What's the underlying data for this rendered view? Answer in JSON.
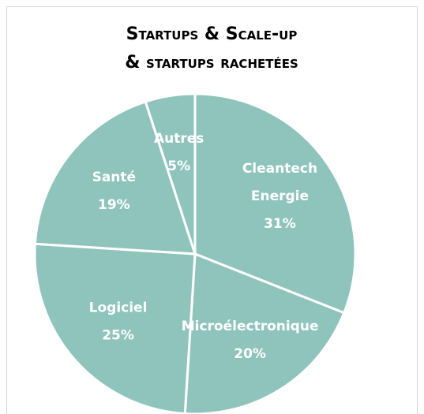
{
  "chart_data": {
    "type": "pie",
    "title": [
      "Startups & Scale-up",
      "& startups rachetées"
    ],
    "categories": [
      "Cleantech Energie",
      "Microélectronique",
      "Logiciel",
      "Santé",
      "Autres"
    ],
    "values": [
      31,
      20,
      25,
      19,
      5
    ],
    "value_labels": [
      "31%",
      "20%",
      "25%",
      "19%",
      "5%"
    ],
    "color": "#8fc4bd"
  }
}
